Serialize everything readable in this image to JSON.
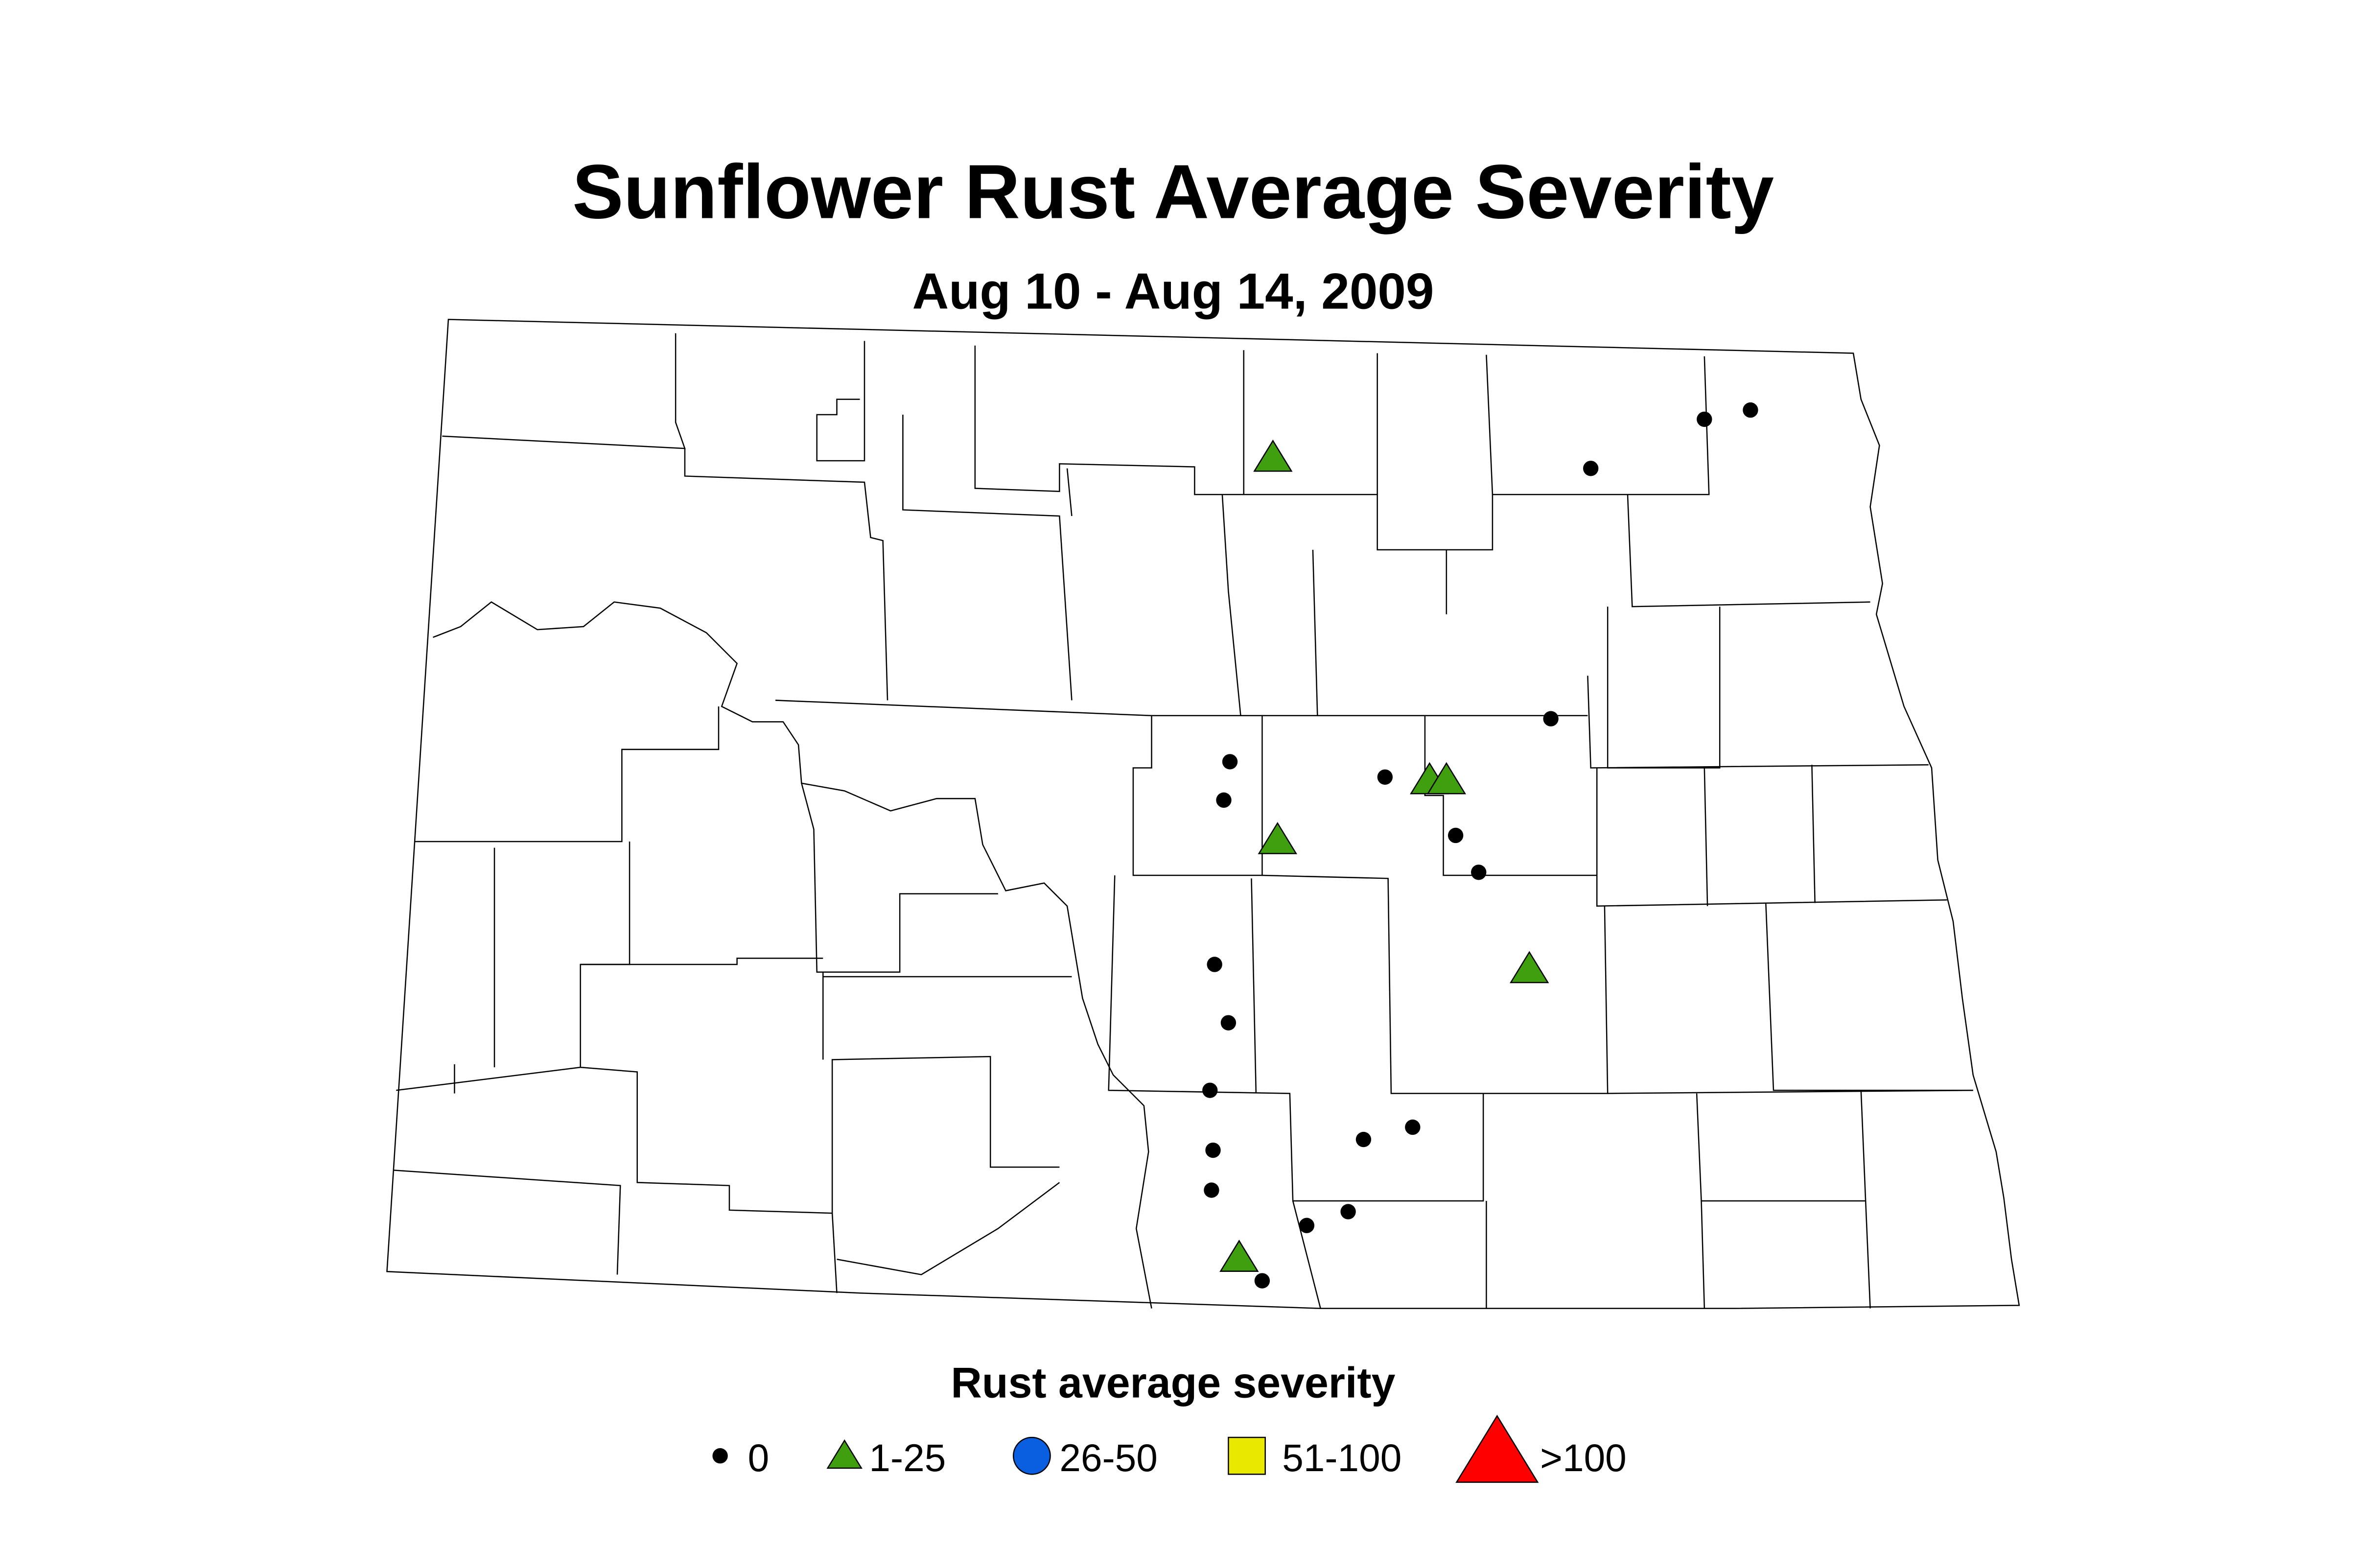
{
  "title": "Sunflower Rust Average Severity",
  "subtitle": "Aug 10 - Aug 14, 2009",
  "legend": {
    "title": "Rust average severity",
    "items": [
      {
        "label": "0",
        "color": "#000000"
      },
      {
        "label": "1-25",
        "color": "#3f9f0f"
      },
      {
        "label": "26-50",
        "color": "#0a5fe0"
      },
      {
        "label": "51-100",
        "color": "#e8e800"
      },
      {
        "label": ">100",
        "color": "#ff0000"
      }
    ]
  }
}
